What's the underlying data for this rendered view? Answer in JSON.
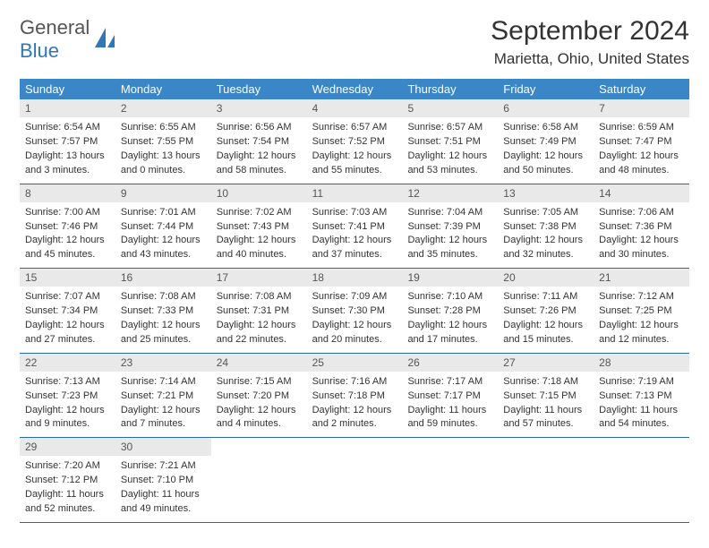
{
  "logo": {
    "line1": "General",
    "line2": "Blue"
  },
  "title": "September 2024",
  "location": "Marietta, Ohio, United States",
  "colors": {
    "header_bg": "#3b86c6",
    "header_text": "#ffffff",
    "daynum_bg": "#e9e9e9",
    "row_border": "#2a6aa0",
    "logo_blue": "#2f77b9",
    "page_bg": "#ffffff",
    "text": "#333333"
  },
  "weekdays": [
    "Sunday",
    "Monday",
    "Tuesday",
    "Wednesday",
    "Thursday",
    "Friday",
    "Saturday"
  ],
  "days": [
    {
      "n": "1",
      "sunrise": "Sunrise: 6:54 AM",
      "sunset": "Sunset: 7:57 PM",
      "dl1": "Daylight: 13 hours",
      "dl2": "and 3 minutes."
    },
    {
      "n": "2",
      "sunrise": "Sunrise: 6:55 AM",
      "sunset": "Sunset: 7:55 PM",
      "dl1": "Daylight: 13 hours",
      "dl2": "and 0 minutes."
    },
    {
      "n": "3",
      "sunrise": "Sunrise: 6:56 AM",
      "sunset": "Sunset: 7:54 PM",
      "dl1": "Daylight: 12 hours",
      "dl2": "and 58 minutes."
    },
    {
      "n": "4",
      "sunrise": "Sunrise: 6:57 AM",
      "sunset": "Sunset: 7:52 PM",
      "dl1": "Daylight: 12 hours",
      "dl2": "and 55 minutes."
    },
    {
      "n": "5",
      "sunrise": "Sunrise: 6:57 AM",
      "sunset": "Sunset: 7:51 PM",
      "dl1": "Daylight: 12 hours",
      "dl2": "and 53 minutes."
    },
    {
      "n": "6",
      "sunrise": "Sunrise: 6:58 AM",
      "sunset": "Sunset: 7:49 PM",
      "dl1": "Daylight: 12 hours",
      "dl2": "and 50 minutes."
    },
    {
      "n": "7",
      "sunrise": "Sunrise: 6:59 AM",
      "sunset": "Sunset: 7:47 PM",
      "dl1": "Daylight: 12 hours",
      "dl2": "and 48 minutes."
    },
    {
      "n": "8",
      "sunrise": "Sunrise: 7:00 AM",
      "sunset": "Sunset: 7:46 PM",
      "dl1": "Daylight: 12 hours",
      "dl2": "and 45 minutes."
    },
    {
      "n": "9",
      "sunrise": "Sunrise: 7:01 AM",
      "sunset": "Sunset: 7:44 PM",
      "dl1": "Daylight: 12 hours",
      "dl2": "and 43 minutes."
    },
    {
      "n": "10",
      "sunrise": "Sunrise: 7:02 AM",
      "sunset": "Sunset: 7:43 PM",
      "dl1": "Daylight: 12 hours",
      "dl2": "and 40 minutes."
    },
    {
      "n": "11",
      "sunrise": "Sunrise: 7:03 AM",
      "sunset": "Sunset: 7:41 PM",
      "dl1": "Daylight: 12 hours",
      "dl2": "and 37 minutes."
    },
    {
      "n": "12",
      "sunrise": "Sunrise: 7:04 AM",
      "sunset": "Sunset: 7:39 PM",
      "dl1": "Daylight: 12 hours",
      "dl2": "and 35 minutes."
    },
    {
      "n": "13",
      "sunrise": "Sunrise: 7:05 AM",
      "sunset": "Sunset: 7:38 PM",
      "dl1": "Daylight: 12 hours",
      "dl2": "and 32 minutes."
    },
    {
      "n": "14",
      "sunrise": "Sunrise: 7:06 AM",
      "sunset": "Sunset: 7:36 PM",
      "dl1": "Daylight: 12 hours",
      "dl2": "and 30 minutes."
    },
    {
      "n": "15",
      "sunrise": "Sunrise: 7:07 AM",
      "sunset": "Sunset: 7:34 PM",
      "dl1": "Daylight: 12 hours",
      "dl2": "and 27 minutes."
    },
    {
      "n": "16",
      "sunrise": "Sunrise: 7:08 AM",
      "sunset": "Sunset: 7:33 PM",
      "dl1": "Daylight: 12 hours",
      "dl2": "and 25 minutes."
    },
    {
      "n": "17",
      "sunrise": "Sunrise: 7:08 AM",
      "sunset": "Sunset: 7:31 PM",
      "dl1": "Daylight: 12 hours",
      "dl2": "and 22 minutes."
    },
    {
      "n": "18",
      "sunrise": "Sunrise: 7:09 AM",
      "sunset": "Sunset: 7:30 PM",
      "dl1": "Daylight: 12 hours",
      "dl2": "and 20 minutes."
    },
    {
      "n": "19",
      "sunrise": "Sunrise: 7:10 AM",
      "sunset": "Sunset: 7:28 PM",
      "dl1": "Daylight: 12 hours",
      "dl2": "and 17 minutes."
    },
    {
      "n": "20",
      "sunrise": "Sunrise: 7:11 AM",
      "sunset": "Sunset: 7:26 PM",
      "dl1": "Daylight: 12 hours",
      "dl2": "and 15 minutes."
    },
    {
      "n": "21",
      "sunrise": "Sunrise: 7:12 AM",
      "sunset": "Sunset: 7:25 PM",
      "dl1": "Daylight: 12 hours",
      "dl2": "and 12 minutes."
    },
    {
      "n": "22",
      "sunrise": "Sunrise: 7:13 AM",
      "sunset": "Sunset: 7:23 PM",
      "dl1": "Daylight: 12 hours",
      "dl2": "and 9 minutes."
    },
    {
      "n": "23",
      "sunrise": "Sunrise: 7:14 AM",
      "sunset": "Sunset: 7:21 PM",
      "dl1": "Daylight: 12 hours",
      "dl2": "and 7 minutes."
    },
    {
      "n": "24",
      "sunrise": "Sunrise: 7:15 AM",
      "sunset": "Sunset: 7:20 PM",
      "dl1": "Daylight: 12 hours",
      "dl2": "and 4 minutes."
    },
    {
      "n": "25",
      "sunrise": "Sunrise: 7:16 AM",
      "sunset": "Sunset: 7:18 PM",
      "dl1": "Daylight: 12 hours",
      "dl2": "and 2 minutes."
    },
    {
      "n": "26",
      "sunrise": "Sunrise: 7:17 AM",
      "sunset": "Sunset: 7:17 PM",
      "dl1": "Daylight: 11 hours",
      "dl2": "and 59 minutes."
    },
    {
      "n": "27",
      "sunrise": "Sunrise: 7:18 AM",
      "sunset": "Sunset: 7:15 PM",
      "dl1": "Daylight: 11 hours",
      "dl2": "and 57 minutes."
    },
    {
      "n": "28",
      "sunrise": "Sunrise: 7:19 AM",
      "sunset": "Sunset: 7:13 PM",
      "dl1": "Daylight: 11 hours",
      "dl2": "and 54 minutes."
    },
    {
      "n": "29",
      "sunrise": "Sunrise: 7:20 AM",
      "sunset": "Sunset: 7:12 PM",
      "dl1": "Daylight: 11 hours",
      "dl2": "and 52 minutes."
    },
    {
      "n": "30",
      "sunrise": "Sunrise: 7:21 AM",
      "sunset": "Sunset: 7:10 PM",
      "dl1": "Daylight: 11 hours",
      "dl2": "and 49 minutes."
    }
  ],
  "layout": {
    "start_weekday": 0,
    "days_in_month": 30,
    "columns": 7
  }
}
